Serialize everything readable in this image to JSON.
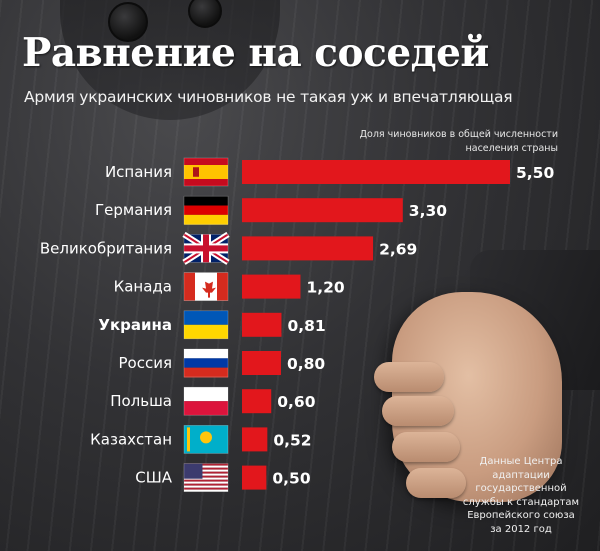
{
  "title": "Равнение на соседей",
  "subtitle": "Армия украинских чиновников не такая уж и впечатляющая",
  "axis_note": [
    "Доля чиновников в общей численности",
    "населения страны"
  ],
  "source": [
    "Данные Центра",
    "адаптации",
    "государственной",
    "службы к стандартам",
    "Европейского союза",
    "за 2012 год"
  ],
  "colors": {
    "bar": "#e2171c",
    "text": "#ffffff",
    "highlight_label": "Украина"
  },
  "chart_data": {
    "type": "bar",
    "orientation": "horizontal",
    "title": "Равнение на соседей",
    "subtitle": "Армия украинских чиновников не такая уж и впечатляющая",
    "value_axis_label": "Доля чиновников в общей численности населения страны",
    "categories": [
      "Испания",
      "Германия",
      "Великобритания",
      "Канада",
      "Украина",
      "Россия",
      "Польша",
      "Казахстан",
      "США"
    ],
    "values": [
      5.5,
      3.3,
      2.69,
      1.2,
      0.81,
      0.8,
      0.6,
      0.52,
      0.5
    ],
    "value_labels": [
      "5,50",
      "3,30",
      "2,69",
      "1,20",
      "0,81",
      "0,80",
      "0,60",
      "0,52",
      "0,50"
    ],
    "flags": [
      "spain-flag-icon",
      "germany-flag-icon",
      "uk-flag-icon",
      "canada-flag-icon",
      "ukraine-flag-icon",
      "russia-flag-icon",
      "poland-flag-icon",
      "kazakhstan-flag-icon",
      "usa-flag-icon"
    ],
    "highlight": "Украина",
    "grid": false,
    "legend": "none"
  }
}
